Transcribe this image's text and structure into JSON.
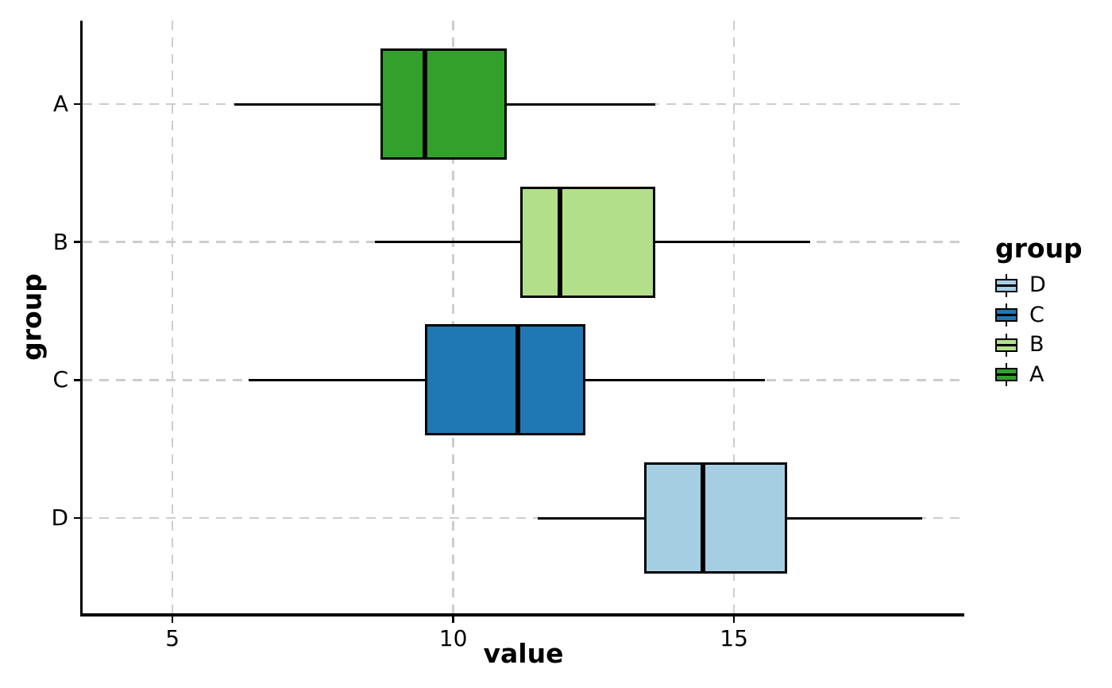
{
  "chart_data": {
    "type": "boxplot",
    "orientation": "horizontal",
    "xlabel": "value",
    "ylabel": "group",
    "x_ticks": [
      5,
      10,
      15
    ],
    "xlim": [
      3.4,
      19.1
    ],
    "categories_top_to_bottom": [
      "A",
      "B",
      "C",
      "D"
    ],
    "series": [
      {
        "group": "A",
        "color": "#33a02c",
        "whisker_min": 6.1,
        "q1": 8.7,
        "median": 9.5,
        "q3": 10.95,
        "whisker_max": 13.6
      },
      {
        "group": "B",
        "color": "#b2df8a",
        "whisker_min": 8.6,
        "q1": 11.2,
        "median": 11.9,
        "q3": 13.6,
        "whisker_max": 16.35
      },
      {
        "group": "C",
        "color": "#1f78b4",
        "whisker_min": 6.35,
        "q1": 9.5,
        "median": 11.15,
        "q3": 12.35,
        "whisker_max": 15.55
      },
      {
        "group": "D",
        "color": "#a6cee3",
        "whisker_min": 11.5,
        "q1": 13.4,
        "median": 14.45,
        "q3": 15.95,
        "whisker_max": 18.35
      }
    ],
    "legend": {
      "title": "group",
      "position": "right",
      "entries": [
        {
          "label": "D",
          "color": "#a6cee3"
        },
        {
          "label": "C",
          "color": "#1f78b4"
        },
        {
          "label": "B",
          "color": "#b2df8a"
        },
        {
          "label": "A",
          "color": "#33a02c"
        }
      ]
    },
    "grid": {
      "style": "dashed",
      "color": "#cdcdcd"
    },
    "axis_color": "#000000",
    "background": "#ffffff"
  }
}
